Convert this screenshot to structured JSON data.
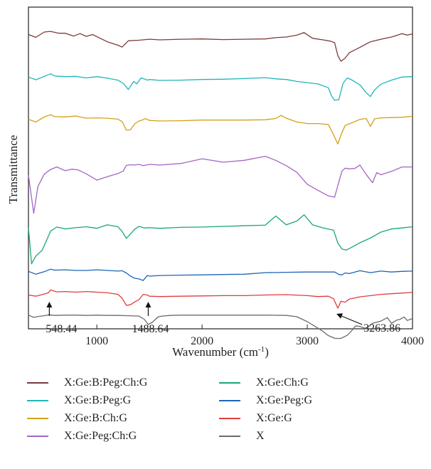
{
  "chart_data": {
    "type": "line",
    "title": "",
    "xlabel": "Wavenumber (cm",
    "xlabel_sup": "-1",
    "xlabel_suffix": ")",
    "ylabel": "Transmittance",
    "xlim": [
      350,
      4000
    ],
    "ylim": [
      0,
      100
    ],
    "xticks": [
      1000,
      2000,
      3000,
      4000
    ],
    "xtick_labels": [
      "1000",
      "2000",
      "3000",
      "4000"
    ],
    "yticks_shown": false,
    "grid": false,
    "legend_position": "bottom",
    "series": [
      {
        "name": "X:Ge:B:Peg:Ch:G",
        "color": "#7b3b3b",
        "x": [
          350,
          420,
          500,
          560,
          640,
          700,
          780,
          840,
          900,
          960,
          1000,
          1100,
          1200,
          1240,
          1300,
          1400,
          1500,
          1600,
          1800,
          2000,
          2200,
          2400,
          2600,
          2700,
          2800,
          2900,
          2970,
          3050,
          3150,
          3220,
          3260,
          3290,
          3320,
          3360,
          3400,
          3500,
          3600,
          3700,
          3800,
          3850,
          3900,
          3950,
          4000
        ],
        "y": [
          93.1,
          92.2,
          93.9,
          94.1,
          93.5,
          93.5,
          92.6,
          93.4,
          92.5,
          93.1,
          92.4,
          90.8,
          89.7,
          89.1,
          91.1,
          91.3,
          91.6,
          91.4,
          91.6,
          91.7,
          91.5,
          91.6,
          91.7,
          92.1,
          92.3,
          92.9,
          93.7,
          91.9,
          91.4,
          91.0,
          90.5,
          86.4,
          84.6,
          85.6,
          87.3,
          89.0,
          90.8,
          91.6,
          92.3,
          92.8,
          93.4,
          92.9,
          93.3
        ]
      },
      {
        "name": "X:Ge:B:Peg:G",
        "color": "#20b5b5",
        "x": [
          350,
          420,
          500,
          560,
          600,
          700,
          800,
          900,
          1000,
          1100,
          1200,
          1250,
          1300,
          1350,
          1380,
          1420,
          1450,
          1480,
          1500,
          1600,
          1800,
          2000,
          2200,
          2400,
          2600,
          2700,
          2800,
          2900,
          3000,
          3100,
          3200,
          3230,
          3260,
          3300,
          3340,
          3380,
          3420,
          3500,
          3560,
          3600,
          3640,
          3700,
          3800,
          3900,
          4000
        ],
        "y": [
          79.6,
          78.7,
          79.8,
          80.6,
          79.9,
          79.7,
          79.8,
          79.3,
          79.7,
          79.2,
          78.6,
          77.6,
          75.6,
          78.2,
          77.4,
          79.3,
          79.0,
          78.6,
          78.8,
          78.5,
          78.6,
          78.8,
          78.9,
          79.1,
          79.4,
          79.0,
          78.8,
          78.2,
          77.8,
          77.4,
          76.2,
          73.6,
          72.2,
          72.4,
          77.6,
          79.3,
          78.7,
          77.1,
          74.6,
          73.4,
          75.5,
          77.3,
          78.6,
          79.6,
          79.7
        ]
      },
      {
        "name": "X:Ge:B:Ch:G",
        "color": "#d4a017",
        "x": [
          350,
          420,
          500,
          560,
          600,
          700,
          800,
          900,
          1000,
          1100,
          1200,
          1240,
          1280,
          1320,
          1360,
          1400,
          1440,
          1460,
          1500,
          1600,
          1800,
          2000,
          2200,
          2400,
          2600,
          2700,
          2750,
          2800,
          2900,
          3000,
          3100,
          3200,
          3240,
          3290,
          3320,
          3360,
          3400,
          3500,
          3560,
          3600,
          3640,
          3700,
          3800,
          3900,
          4000
        ],
        "y": [
          66.1,
          65.3,
          66.9,
          67.6,
          67.0,
          66.9,
          67.2,
          66.5,
          66.6,
          66.5,
          66.2,
          65.4,
          62.7,
          62.8,
          64.7,
          65.6,
          66.0,
          66.4,
          65.8,
          65.6,
          65.7,
          65.9,
          65.9,
          65.9,
          66.0,
          66.4,
          67.4,
          66.5,
          65.3,
          64.8,
          64.8,
          64.5,
          61.9,
          58.3,
          61.2,
          64.2,
          64.7,
          66.1,
          66.4,
          63.9,
          66.3,
          66.6,
          66.7,
          66.8,
          67.1
        ]
      },
      {
        "name": "X:Ge:Peg:Ch:G",
        "color": "#a366c4",
        "x": [
          350,
          400,
          440,
          500,
          560,
          620,
          700,
          760,
          820,
          900,
          1000,
          1100,
          1200,
          1250,
          1280,
          1320,
          1360,
          1400,
          1440,
          1500,
          1600,
          1800,
          2000,
          2200,
          2400,
          2600,
          2700,
          2800,
          2900,
          3000,
          3100,
          3200,
          3260,
          3300,
          3330,
          3360,
          3400,
          3450,
          3500,
          3560,
          3620,
          3660,
          3700,
          3800,
          3900,
          4000
        ],
        "y": [
          48.4,
          36.3,
          44.8,
          48.7,
          50.2,
          51.0,
          49.8,
          50.3,
          50.1,
          48.8,
          46.8,
          47.9,
          48.9,
          49.7,
          51.5,
          51.7,
          51.6,
          51.8,
          51.4,
          51.8,
          51.6,
          52.1,
          53.6,
          52.5,
          53.1,
          54.4,
          53.1,
          51.4,
          49.3,
          45.5,
          43.6,
          41.8,
          41.4,
          46.2,
          49.7,
          50.6,
          50.4,
          50.5,
          51.6,
          48.6,
          46.0,
          49.2,
          48.5,
          49.6,
          51.0,
          51.0
        ]
      },
      {
        "name": "X:Ge:Ch:G",
        "color": "#18a77a",
        "x": [
          350,
          380,
          420,
          480,
          520,
          560,
          620,
          700,
          800,
          900,
          1000,
          1100,
          1200,
          1240,
          1280,
          1320,
          1360,
          1400,
          1450,
          1500,
          1600,
          1800,
          2000,
          2200,
          2400,
          2600,
          2700,
          2800,
          2900,
          2970,
          3050,
          3150,
          3250,
          3290,
          3330,
          3370,
          3420,
          3500,
          3600,
          3700,
          3800,
          3900,
          4000
        ],
        "y": [
          31.6,
          20.2,
          22.7,
          24.5,
          27.5,
          30.6,
          31.9,
          31.3,
          31.7,
          32.0,
          31.5,
          32.6,
          32.0,
          30.5,
          28.3,
          29.7,
          31.2,
          32.1,
          31.6,
          31.7,
          31.5,
          31.8,
          31.9,
          32.1,
          32.3,
          32.5,
          35.4,
          32.6,
          33.8,
          35.8,
          32.6,
          31.6,
          30.9,
          26.8,
          24.9,
          24.6,
          25.4,
          26.9,
          28.4,
          30.3,
          31.3,
          31.6,
          32.0
        ]
      },
      {
        "name": "X:Ge:Peg:G",
        "color": "#1e64b4",
        "x": [
          350,
          420,
          500,
          560,
          600,
          700,
          800,
          900,
          1000,
          1100,
          1200,
          1240,
          1280,
          1320,
          1360,
          1400,
          1440,
          1480,
          1500,
          1600,
          1800,
          2000,
          2200,
          2400,
          2600,
          2800,
          3000,
          3100,
          3200,
          3260,
          3300,
          3330,
          3360,
          3400,
          3500,
          3600,
          3700,
          3800,
          3900,
          4000
        ],
        "y": [
          17.8,
          16.9,
          17.7,
          18.5,
          18.2,
          18.3,
          18.1,
          18.1,
          18.3,
          18.1,
          17.9,
          18.0,
          17.3,
          16.3,
          15.6,
          15.4,
          14.9,
          16.5,
          16.3,
          16.5,
          16.6,
          16.7,
          16.8,
          16.9,
          17.4,
          17.5,
          17.6,
          17.6,
          17.6,
          17.6,
          16.8,
          16.7,
          17.3,
          17.1,
          18.0,
          17.4,
          17.9,
          17.6,
          17.8,
          17.9
        ]
      },
      {
        "name": "X:Ge:G",
        "color": "#e03c3c",
        "x": [
          350,
          420,
          500,
          540,
          560,
          620,
          700,
          800,
          900,
          1000,
          1100,
          1200,
          1240,
          1280,
          1320,
          1360,
          1400,
          1440,
          1480,
          1500,
          1600,
          1800,
          2000,
          2200,
          2400,
          2600,
          2800,
          3000,
          3100,
          3200,
          3250,
          3290,
          3320,
          3360,
          3400,
          3500,
          3600,
          3700,
          3800,
          3900,
          4000
        ],
        "y": [
          10.3,
          9.9,
          10.6,
          11.0,
          11.9,
          11.3,
          11.4,
          11.2,
          11.4,
          11.2,
          11.0,
          10.5,
          9.3,
          7.0,
          7.2,
          8.1,
          8.8,
          10.5,
          10.3,
          9.9,
          9.8,
          9.9,
          10.0,
          10.1,
          10.1,
          10.3,
          10.4,
          10.1,
          9.8,
          9.9,
          9.1,
          6.1,
          8.3,
          8.0,
          9.0,
          9.7,
          10.1,
          10.5,
          10.7,
          10.9,
          11.1
        ]
      },
      {
        "name": "X",
        "color": "#6b6b6b",
        "x": [
          350,
          400,
          450,
          500,
          548,
          600,
          700,
          800,
          900,
          1000,
          1100,
          1200,
          1300,
          1400,
          1450,
          1489,
          1530,
          1580,
          1620,
          1700,
          1800,
          2000,
          2200,
          2400,
          2600,
          2800,
          2900,
          3000,
          3100,
          3150,
          3200,
          3264,
          3320,
          3380,
          3420,
          3460,
          3500,
          3560,
          3620,
          3700,
          3760,
          3800,
          3850,
          3880,
          3920,
          3950,
          4000
        ],
        "y": [
          3.9,
          3.2,
          3.5,
          3.7,
          4.0,
          3.8,
          3.9,
          3.9,
          3.8,
          3.9,
          3.8,
          3.8,
          3.7,
          3.6,
          2.6,
          0.9,
          1.7,
          3.3,
          3.6,
          3.8,
          3.9,
          3.9,
          3.9,
          3.9,
          3.9,
          3.8,
          3.4,
          1.8,
          -0.2,
          -1.3,
          -2.6,
          -3.5,
          -3.5,
          -2.5,
          -1.1,
          0.5,
          0.3,
          -0.4,
          1.3,
          2.0,
          3.1,
          1.3,
          2.3,
          2.5,
          3.3,
          2.2,
          2.8
        ]
      }
    ],
    "annotations": [
      {
        "text": "548.44",
        "x": 548.44
      },
      {
        "text": "1488.64",
        "x": 1488.64
      },
      {
        "text": "3263.86",
        "x": 3263.86
      }
    ]
  }
}
